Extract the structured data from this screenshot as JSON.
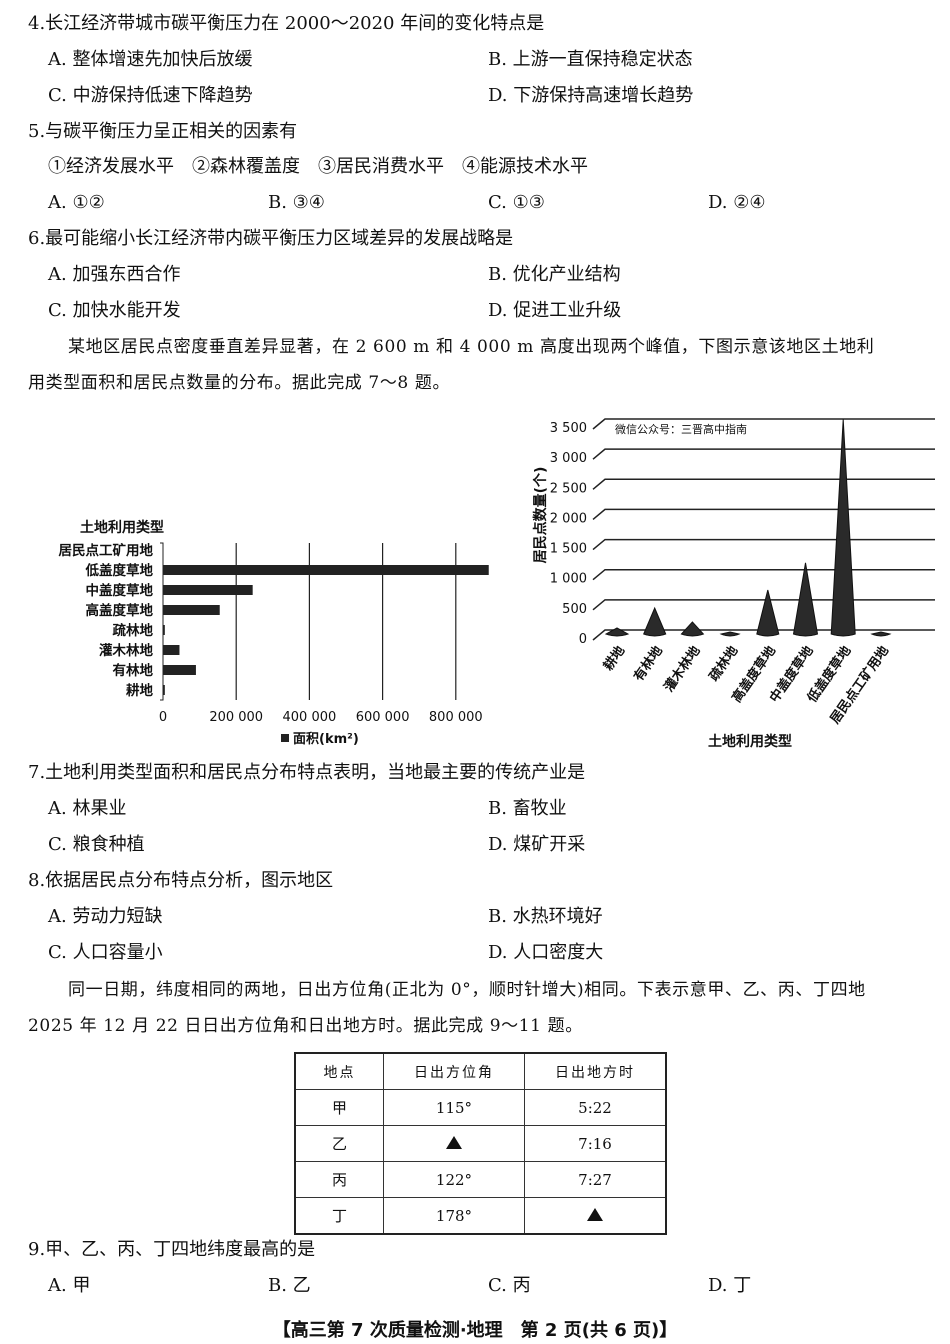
{
  "q4": {
    "stem": "4.长江经济带城市碳平衡压力在 2000～2020 年间的变化特点是",
    "options": [
      "A. 整体增速先加快后放缓",
      "B. 上游一直保持稳定状态",
      "C. 中游保持低速下降趋势",
      "D. 下游保持高速增长趋势"
    ]
  },
  "q5": {
    "stem": "5.与碳平衡压力呈正相关的因素有",
    "items": "①经济发展水平　②森林覆盖度　③居民消费水平　④能源技术水平",
    "options": [
      "A. ①②",
      "B. ③④",
      "C. ①③",
      "D. ②④"
    ]
  },
  "q6": {
    "stem": "6.最可能缩小长江经济带内碳平衡压力区域差异的发展战略是",
    "options": [
      "A. 加强东西合作",
      "B. 优化产业结构",
      "C. 加快水能开发",
      "D. 促进工业升级"
    ]
  },
  "para1": [
    "某地区居民点密度垂直差异显著，在 2 600 m 和 4 000 m 高度出现两个峰值，下图示意该地区土地利",
    "用类型面积和居民点数量的分布。据此完成 7～8 题。"
  ],
  "chart_data": [
    {
      "type": "bar",
      "orientation": "horizontal",
      "ylabel": "土地利用类型",
      "legend": "面积(km²)",
      "legend_position": "bottom",
      "categories": [
        "居民点工矿用地",
        "低盖度草地",
        "中盖度草地",
        "高盖度草地",
        "疏林地",
        "灌木林地",
        "有林地",
        "耕地"
      ],
      "values": [
        0,
        890000,
        245000,
        155000,
        5000,
        45000,
        90000,
        5000
      ],
      "xlim": [
        0,
        900000
      ],
      "xticks": [
        "0",
        "200 000",
        "400 000",
        "600 000",
        "800 000"
      ],
      "grid": true
    },
    {
      "type": "bar",
      "style": "3d-cone",
      "ylabel": "居民点数量(个)",
      "xlabel": "土地利用类型",
      "watermark": "微信公众号：三晋高中指南",
      "categories": [
        "耕地",
        "有林地",
        "灌木林地",
        "疏林地",
        "高盖度草地",
        "中盖度草地",
        "低盖度草地",
        "居民点工矿用地"
      ],
      "values": [
        100,
        430,
        200,
        20,
        730,
        1180,
        3560,
        20
      ],
      "ylim": [
        0,
        3500
      ],
      "yticks": [
        "0",
        "500",
        "1 000",
        "1 500",
        "2 000",
        "2 500",
        "3 000",
        "3 500"
      ],
      "grid": true
    }
  ],
  "q7": {
    "stem": "7.土地利用类型面积和居民点分布特点表明，当地最主要的传统产业是",
    "options": [
      "A. 林果业",
      "B. 畜牧业",
      "C. 粮食种植",
      "D. 煤矿开采"
    ]
  },
  "q8": {
    "stem": "8.依据居民点分布特点分析，图示地区",
    "options": [
      "A. 劳动力短缺",
      "B. 水热环境好",
      "C. 人口容量小",
      "D. 人口密度大"
    ]
  },
  "para2": [
    "同一日期，纬度相同的两地，日出方位角(正北为 0°，顺时针增大)相同。下表示意甲、乙、丙、丁四地",
    "2025 年 12 月 22 日日出方位角和日出地方时。据此完成 9～11 题。"
  ],
  "table": {
    "headers": [
      "地点",
      "日出方位角",
      "日出地方时"
    ],
    "rows": [
      [
        "甲",
        "115°",
        "5:22"
      ],
      [
        "乙",
        "▲",
        "7:16"
      ],
      [
        "丙",
        "122°",
        "7:27"
      ],
      [
        "丁",
        "178°",
        "▲"
      ]
    ]
  },
  "q9": {
    "stem": "9.甲、乙、丙、丁四地纬度最高的是",
    "options": [
      "A. 甲",
      "B. 乙",
      "C. 丙",
      "D. 丁"
    ]
  },
  "footer": "【高三第 7 次质量检测·地理　第 2 页(共 6 页)】"
}
